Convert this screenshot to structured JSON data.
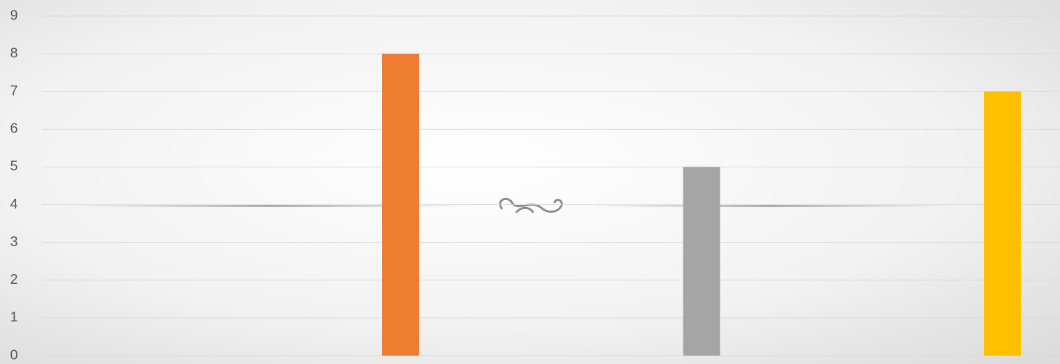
{
  "chart_data": {
    "type": "bar",
    "categories": [
      null,
      null,
      null
    ],
    "values": [
      8,
      5,
      7
    ],
    "colors": [
      "#ed7d31",
      "#a5a5a5",
      "#ffc000"
    ],
    "ylim": [
      0,
      9
    ],
    "yticks": [
      0,
      1,
      2,
      3,
      4,
      5,
      6,
      7,
      8,
      9
    ],
    "grid": true
  }
}
